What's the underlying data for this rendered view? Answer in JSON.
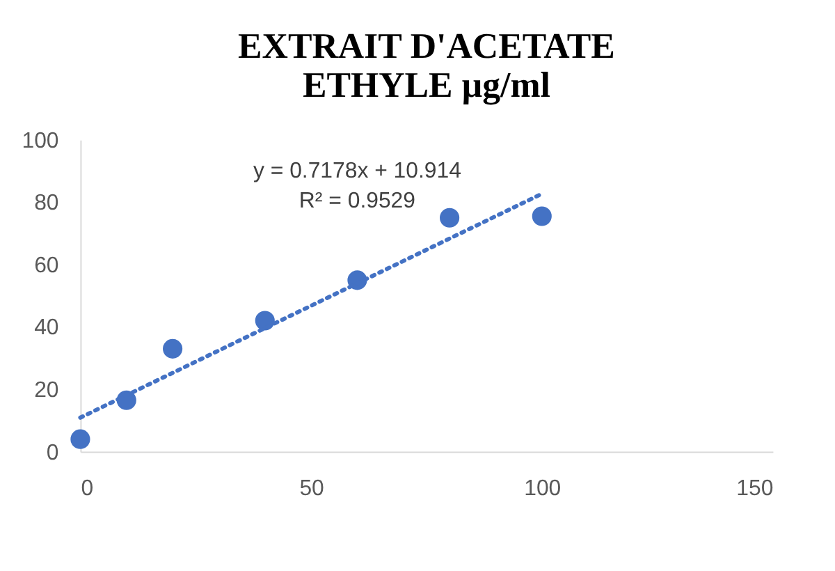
{
  "chart_data": {
    "type": "scatter",
    "title": "EXTRAIT D'ACETATE ETHYLE µg/ml",
    "series": [
      {
        "color": "#4472c4",
        "marker": "circle",
        "x": [
          0,
          10,
          20,
          40,
          60,
          80,
          100
        ],
        "values": [
          4,
          16.5,
          33,
          42,
          55,
          75,
          75.5
        ]
      },
      {
        "type": "line",
        "color": "#4472c4",
        "line_style": "dotted",
        "x": [
          0,
          100
        ],
        "values": [
          10.9,
          82.7
        ]
      }
    ],
    "annotations": [
      "y = 0.7178x + 10.914",
      "R² = 0.9529"
    ],
    "xlim": [
      0,
      150
    ],
    "xticks": [
      0,
      50,
      100,
      150
    ],
    "ylim": [
      0,
      100
    ],
    "yticks": [
      0,
      20,
      40,
      60,
      80,
      100
    ],
    "grid": false
  }
}
